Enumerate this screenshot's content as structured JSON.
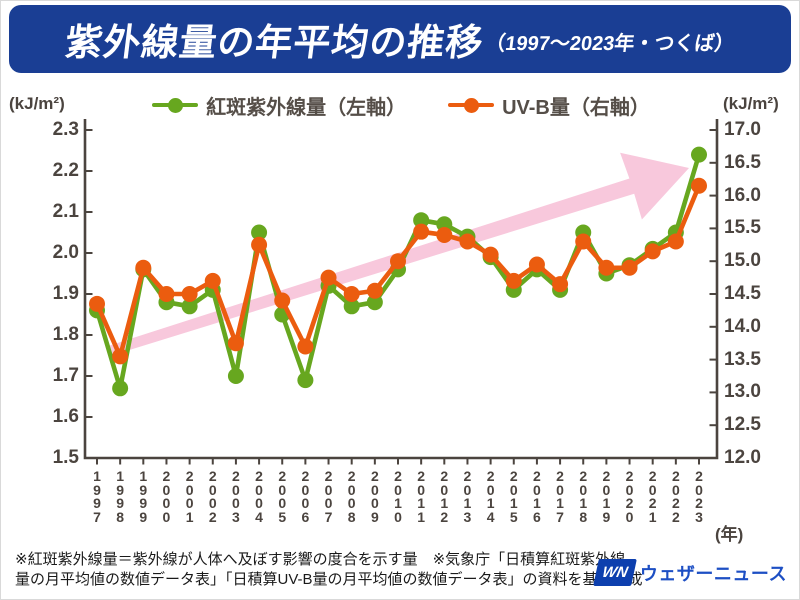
{
  "header": {
    "title": "紫外線量の年平均の推移",
    "subtitle": "（1997～2023年・つくば）",
    "banner_color": "#1a3e94"
  },
  "legend": {
    "items": [
      {
        "label": "紅斑紫外線量（左軸）",
        "color": "#67a71f"
      },
      {
        "label": "UV-B量（右軸）",
        "color": "#eb5c0f"
      }
    ]
  },
  "chart_data": {
    "type": "line",
    "title": "紫外線量の年平均の推移（1997～2023年・つくば）",
    "categories": [
      1997,
      1998,
      1999,
      2000,
      2001,
      2002,
      2003,
      2004,
      2005,
      2006,
      2007,
      2008,
      2009,
      2010,
      2011,
      2012,
      2013,
      2014,
      2015,
      2016,
      2017,
      2018,
      2019,
      2020,
      2021,
      2022,
      2023
    ],
    "series": [
      {
        "name": "紅斑紫外線量（左軸）",
        "axis": "left",
        "color": "#67a71f",
        "values": [
          1.86,
          1.67,
          1.96,
          1.88,
          1.87,
          1.91,
          1.7,
          2.05,
          1.85,
          1.69,
          1.92,
          1.87,
          1.88,
          1.96,
          2.08,
          2.07,
          2.04,
          1.99,
          1.91,
          1.96,
          1.91,
          2.05,
          1.95,
          1.97,
          2.01,
          2.05,
          2.24
        ]
      },
      {
        "name": "UV-B量（右軸）",
        "axis": "right",
        "color": "#eb5c0f",
        "values": [
          14.35,
          13.55,
          14.9,
          14.5,
          14.5,
          14.7,
          13.75,
          15.25,
          14.4,
          13.7,
          14.75,
          14.5,
          14.55,
          15.0,
          15.45,
          15.4,
          15.3,
          15.1,
          14.7,
          14.95,
          14.65,
          15.3,
          14.9,
          14.9,
          15.15,
          15.3,
          16.15
        ]
      }
    ],
    "left_axis": {
      "unit": "(kJ/m²)",
      "min": 1.5,
      "max": 2.3,
      "step": 0.1
    },
    "right_axis": {
      "unit": "(kJ/m²)",
      "min": 12.0,
      "max": 17.0,
      "step": 0.5
    },
    "x_axis_unit": "(年)",
    "legend_position": "top",
    "grid": false,
    "axis_color": "#4b443f",
    "annotations": [
      {
        "type": "trend-arrow",
        "direction": "up-right",
        "color": "#f8c8dc"
      }
    ]
  },
  "footer": {
    "note_lines": [
      "※紅斑紫外線量＝紫外線が人体へ及ぼす影響の度合を示す量　※気象庁「日積算紅斑紫外線",
      "量の月平均値の数値データ表」「日積算UV-B量の月平均値の数値データ表」の資料を基に作成"
    ],
    "brand": "ウェザーニュース",
    "logo_mark": "WN"
  }
}
